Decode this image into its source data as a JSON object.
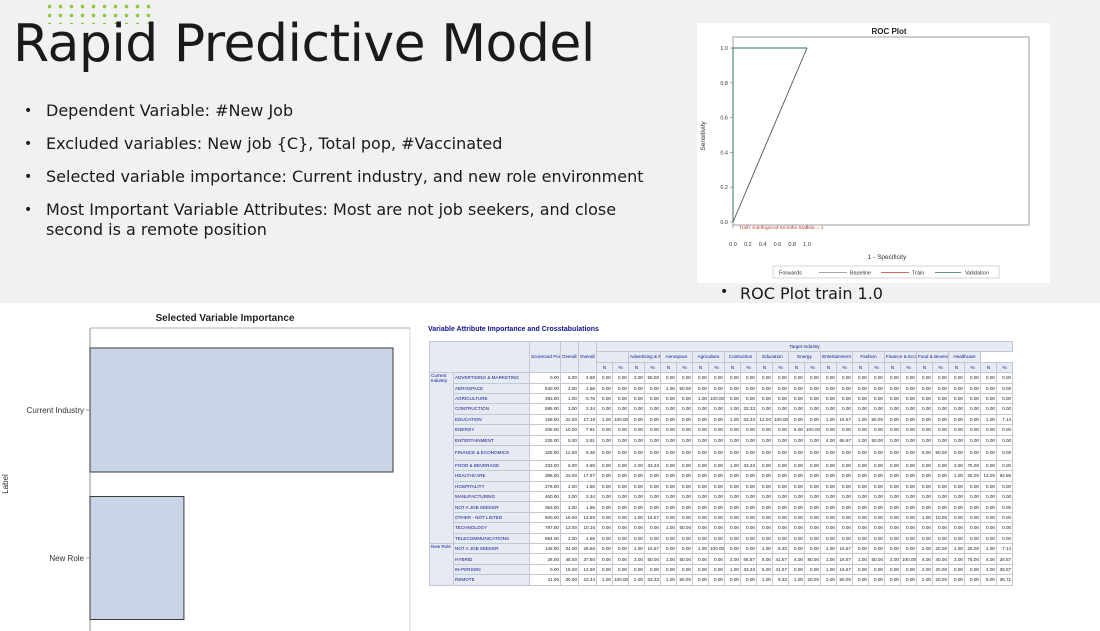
{
  "slide": {
    "title": "Rapid Predictive Model",
    "bullets": [
      "Dependent Variable: #New Job",
      "Excluded variables: New job {C}, Total pop, #Vaccinated",
      "Selected variable importance: Current industry, and new role environment",
      "Most Important Variable Attributes: Most are not job seekers, and close second is a remote position"
    ],
    "roc_caption": "ROC Plot train 1.0"
  },
  "colors": {
    "accent_dots": "#8dc63f",
    "bar_fill": "#c9d4e6",
    "bar_stroke": "#3b3b3b",
    "roc_line": "#2e6e57",
    "header_fill": "#e6eaf3",
    "header_text": "#12128a"
  },
  "chart_data": [
    {
      "type": "line",
      "title": "ROC Plot",
      "xlabel": "1 - Specificity",
      "ylabel": "Sensitivity",
      "xlim": [
        0,
        1
      ],
      "ylim": [
        0,
        1
      ],
      "x_ticks": [
        "0.0",
        "0.2",
        "0.4",
        "0.6",
        "0.8",
        "1.0"
      ],
      "y_ticks": [
        "0.0",
        "0.2",
        "0.4",
        "0.6",
        "0.8",
        "1.0"
      ],
      "annotation": "Train: Kolmogorov-Smirnov Statistic = 1",
      "legend": {
        "placement": "bottom",
        "entries": [
          "Forwards",
          "Baseline",
          "Train",
          "Validation"
        ]
      },
      "series": [
        {
          "name": "Baseline",
          "x": [
            0,
            1
          ],
          "y": [
            0,
            1
          ]
        },
        {
          "name": "Validation",
          "x": [
            0,
            0,
            1
          ],
          "y": [
            0,
            1,
            1
          ]
        }
      ],
      "grid": false
    },
    {
      "type": "bar",
      "orientation": "horizontal",
      "title": "Selected Variable Importance",
      "ylabel": "Label",
      "categories": [
        "Current Industry",
        "New Role"
      ],
      "values": [
        1.0,
        0.31
      ],
      "xlim": [
        0,
        1.0
      ]
    }
  ],
  "crosstab": {
    "title": "Variable Attribute Importance and Crosstabulations",
    "headers": {
      "scorecard": "Scorecard Points",
      "overall_n": "Overall N",
      "overall_pct": "Overall %",
      "target": "Target Industry",
      "n": "N",
      "pct": "%"
    },
    "industries": [
      "Advertising & Marketing",
      "Aerospace",
      "Agriculture",
      "Contruction",
      "Education",
      "Energy",
      "Entertainment",
      "Fashion",
      "Finance & Economics",
      "Food & Beverage",
      "Healthcare"
    ],
    "groups": [
      {
        "label": "Current Industry",
        "rows": [
          {
            "label": "ADVERTISING & MARKETING",
            "cells": [
              "0.00",
              "6.00",
              "4.69",
              "0.00",
              "0.00",
              "3.00",
              "50.00",
              "0.00",
              "0.00",
              "0.00",
              "0.00",
              "0.00",
              "0.00",
              "0.00",
              "0.00",
              "0.00",
              "0.00",
              "0.00",
              "0.00",
              "0.00",
              "0.00",
              "0.00",
              "0.00",
              "0.00",
              "0.00",
              "0.00",
              "0.00",
              "0.00",
              "0.00"
            ]
          },
          {
            "label": "AEROSPACE",
            "cells": [
              "540.00",
              "2.00",
              "1.56",
              "0.00",
              "0.00",
              "0.00",
              "0.00",
              "1.00",
              "50.00",
              "0.00",
              "0.00",
              "0.00",
              "0.00",
              "0.00",
              "0.00",
              "0.00",
              "0.00",
              "0.00",
              "0.00",
              "0.00",
              "0.00",
              "0.00",
              "0.00",
              "0.00",
              "0.00",
              "0.00",
              "0.00",
              "0.00",
              "0.00"
            ]
          },
          {
            "label": "AGRICULTURE",
            "cells": [
              "393.00",
              "1.00",
              "0.78",
              "0.00",
              "0.00",
              "0.00",
              "0.00",
              "0.00",
              "0.00",
              "1.00",
              "100.00",
              "0.00",
              "0.00",
              "0.00",
              "0.00",
              "0.00",
              "0.00",
              "0.00",
              "0.00",
              "0.00",
              "0.00",
              "0.00",
              "0.00",
              "0.00",
              "0.00",
              "0.00",
              "0.00",
              "0.00",
              "0.00"
            ]
          },
          {
            "label": "CONTRUCTION",
            "cells": [
              "595.00",
              "3.00",
              "2.34",
              "0.00",
              "0.00",
              "0.00",
              "0.00",
              "0.00",
              "0.00",
              "0.00",
              "0.00",
              "1.00",
              "33.33",
              "0.00",
              "0.00",
              "0.00",
              "0.00",
              "0.00",
              "0.00",
              "0.00",
              "0.00",
              "0.00",
              "0.00",
              "0.00",
              "0.00",
              "0.00",
              "0.00",
              "0.00",
              "0.00"
            ]
          },
          {
            "label": "EDUCATION",
            "cells": [
              "159.00",
              "22.00",
              "17.19",
              "1.00",
              "100.00",
              "0.00",
              "0.00",
              "0.00",
              "0.00",
              "0.00",
              "0.00",
              "1.00",
              "33.33",
              "12.00",
              "100.00",
              "0.00",
              "0.00",
              "1.00",
              "16.67",
              "1.00",
              "50.00",
              "0.00",
              "0.00",
              "0.00",
              "0.00",
              "0.00",
              "0.00",
              "1.00",
              "7.14"
            ]
          },
          {
            "label": "ENERGY",
            "cells": [
              "336.00",
              "10.00",
              "7.81",
              "0.00",
              "0.00",
              "0.00",
              "0.00",
              "0.00",
              "0.00",
              "0.00",
              "0.00",
              "0.00",
              "0.00",
              "0.00",
              "0.00",
              "5.00",
              "100.00",
              "0.00",
              "0.00",
              "0.00",
              "0.00",
              "0.00",
              "0.00",
              "0.00",
              "0.00",
              "0.00",
              "0.00",
              "0.00",
              "0.00"
            ]
          },
          {
            "label": "ENTERTAINMENT",
            "cells": [
              "225.00",
              "5.00",
              "3.91",
              "0.00",
              "0.00",
              "0.00",
              "0.00",
              "0.00",
              "0.00",
              "0.00",
              "0.00",
              "0.00",
              "0.00",
              "0.00",
              "0.00",
              "0.00",
              "0.00",
              "4.00",
              "66.67",
              "1.00",
              "50.00",
              "0.00",
              "0.00",
              "0.00",
              "0.00",
              "0.00",
              "0.00",
              "0.00",
              "0.00"
            ]
          },
          {
            "label": "FINANCE & ECONOMICS",
            "tall": true,
            "cells": [
              "328.00",
              "12.00",
              "9.38",
              "0.00",
              "0.00",
              "0.00",
              "0.00",
              "0.00",
              "0.00",
              "0.00",
              "0.00",
              "0.00",
              "0.00",
              "0.00",
              "0.00",
              "0.00",
              "0.00",
              "0.00",
              "0.00",
              "0.00",
              "0.00",
              "0.00",
              "0.00",
              "6.00",
              "60.00",
              "0.00",
              "0.00",
              "0.00",
              "0.00"
            ]
          },
          {
            "label": "FOOD & BEVERAGE",
            "cells": [
              "233.00",
              "6.00",
              "4.69",
              "0.00",
              "0.00",
              "2.00",
              "33.33",
              "0.00",
              "0.00",
              "0.00",
              "0.00",
              "1.00",
              "33.33",
              "0.00",
              "0.00",
              "0.00",
              "0.00",
              "0.00",
              "0.00",
              "0.00",
              "0.00",
              "0.00",
              "0.00",
              "0.00",
              "0.00",
              "3.00",
              "75.00",
              "0.00",
              "0.00"
            ]
          },
          {
            "label": "HEALTHCARE",
            "cells": [
              "386.00",
              "23.00",
              "17.97",
              "0.00",
              "0.00",
              "0.00",
              "0.00",
              "0.00",
              "0.00",
              "0.00",
              "0.00",
              "0.00",
              "0.00",
              "0.00",
              "0.00",
              "0.00",
              "0.00",
              "0.00",
              "0.00",
              "0.00",
              "0.00",
              "0.00",
              "0.00",
              "0.00",
              "0.00",
              "1.00",
              "25.00",
              "13.00",
              "92.86"
            ]
          },
          {
            "label": "HOSPITALITY",
            "cells": [
              "278.00",
              "2.00",
              "1.56",
              "0.00",
              "0.00",
              "0.00",
              "0.00",
              "0.00",
              "0.00",
              "0.00",
              "0.00",
              "0.00",
              "0.00",
              "0.00",
              "0.00",
              "0.00",
              "0.00",
              "0.00",
              "0.00",
              "0.00",
              "0.00",
              "0.00",
              "0.00",
              "0.00",
              "0.00",
              "0.00",
              "0.00",
              "0.00",
              "0.00"
            ]
          },
          {
            "label": "MANUFACTURING",
            "cells": [
              "460.00",
              "3.00",
              "2.34",
              "0.00",
              "0.00",
              "0.00",
              "0.00",
              "0.00",
              "0.00",
              "0.00",
              "0.00",
              "0.00",
              "0.00",
              "0.00",
              "0.00",
              "0.00",
              "0.00",
              "0.00",
              "0.00",
              "0.00",
              "0.00",
              "0.00",
              "0.00",
              "0.00",
              "0.00",
              "0.00",
              "0.00",
              "0.00",
              "0.00"
            ]
          },
          {
            "label": "NOT A JOB SEEKER",
            "cells": [
              "363.00",
              "2.00",
              "1.56",
              "0.00",
              "0.00",
              "0.00",
              "0.00",
              "0.00",
              "0.00",
              "0.00",
              "0.00",
              "0.00",
              "0.00",
              "0.00",
              "0.00",
              "0.00",
              "0.00",
              "0.00",
              "0.00",
              "0.00",
              "0.00",
              "0.00",
              "0.00",
              "0.00",
              "0.00",
              "0.00",
              "0.00",
              "0.00",
              "0.00"
            ]
          },
          {
            "label": "OTHER - NOT LISTED",
            "cells": [
              "600.00",
              "16.00",
              "12.50",
              "0.00",
              "0.00",
              "1.00",
              "16.67",
              "0.00",
              "0.00",
              "0.00",
              "0.00",
              "0.00",
              "0.00",
              "0.00",
              "0.00",
              "0.00",
              "0.00",
              "0.00",
              "0.00",
              "0.00",
              "0.00",
              "0.00",
              "0.00",
              "1.00",
              "10.00",
              "0.00",
              "0.00",
              "0.00",
              "0.00"
            ]
          },
          {
            "label": "TECHNOLOGY",
            "cells": [
              "787.00",
              "13.00",
              "10.16",
              "0.00",
              "0.00",
              "0.00",
              "0.00",
              "1.00",
              "50.00",
              "0.00",
              "0.00",
              "0.00",
              "0.00",
              "0.00",
              "0.00",
              "0.00",
              "0.00",
              "0.00",
              "0.00",
              "0.00",
              "0.00",
              "0.00",
              "0.00",
              "0.00",
              "0.00",
              "0.00",
              "0.00",
              "0.00",
              "0.00"
            ]
          },
          {
            "label": "TELECOMMUNICATIONS",
            "cells": [
              "854.00",
              "2.00",
              "1.56",
              "0.00",
              "0.00",
              "0.00",
              "0.00",
              "0.00",
              "0.00",
              "0.00",
              "0.00",
              "0.00",
              "0.00",
              "0.00",
              "0.00",
              "0.00",
              "0.00",
              "0.00",
              "0.00",
              "0.00",
              "0.00",
              "0.00",
              "0.00",
              "0.00",
              "0.00",
              "0.00",
              "0.00",
              "0.00",
              "0.00"
            ]
          }
        ]
      },
      {
        "label": "New Role",
        "rows": [
          {
            "label": "NOT A JOB SEEKER",
            "cells": [
              "148.00",
              "34.00",
              "26.56",
              "0.00",
              "0.00",
              "1.00",
              "16.67",
              "0.00",
              "0.00",
              "1.00",
              "100.00",
              "0.00",
              "0.00",
              "1.00",
              "8.33",
              "0.00",
              "0.00",
              "1.00",
              "16.67",
              "0.00",
              "0.00",
              "0.00",
              "0.00",
              "2.00",
              "20.00",
              "1.00",
              "25.00",
              "1.00",
              "7.14"
            ]
          },
          {
            "label": "HYBRID",
            "cells": [
              "26.00",
              "48.00",
              "37.50",
              "0.00",
              "0.00",
              "3.00",
              "50.00",
              "1.00",
              "50.00",
              "0.00",
              "0.00",
              "2.00",
              "66.67",
              "5.00",
              "41.67",
              "4.00",
              "80.00",
              "1.00",
              "16.67",
              "1.00",
              "50.00",
              "2.00",
              "100.00",
              "4.00",
              "40.00",
              "3.00",
              "75.00",
              "4.00",
              "28.57"
            ]
          },
          {
            "label": "IN-PERSON",
            "cells": [
              "0.00",
              "16.00",
              "12.50",
              "0.00",
              "0.00",
              "0.00",
              "0.00",
              "0.00",
              "0.00",
              "0.00",
              "0.00",
              "1.00",
              "33.33",
              "5.00",
              "41.67",
              "0.00",
              "0.00",
              "1.00",
              "16.67",
              "0.00",
              "0.00",
              "0.00",
              "0.00",
              "2.00",
              "20.00",
              "0.00",
              "0.00",
              "4.00",
              "28.57"
            ]
          },
          {
            "label": "REMOTE",
            "cells": [
              "41.00",
              "30.00",
              "23.44",
              "1.00",
              "100.00",
              "2.00",
              "33.33",
              "1.00",
              "50.00",
              "0.00",
              "0.00",
              "0.00",
              "0.00",
              "1.00",
              "8.33",
              "1.00",
              "20.00",
              "3.00",
              "50.00",
              "0.00",
              "0.00",
              "0.00",
              "0.00",
              "2.00",
              "20.00",
              "0.00",
              "0.00",
              "5.00",
              "35.71"
            ]
          }
        ]
      }
    ]
  }
}
